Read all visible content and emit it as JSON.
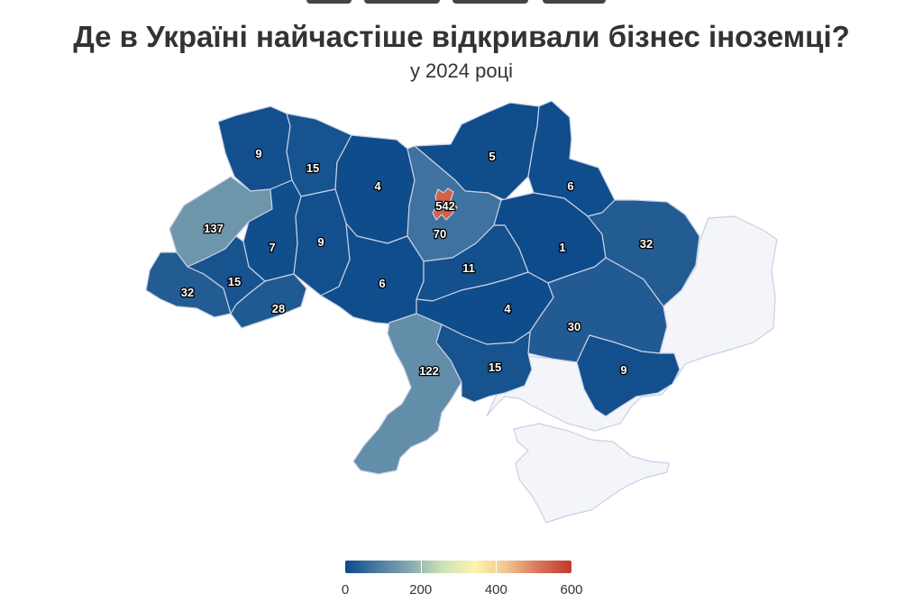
{
  "title": "Де в Україні найчастіше відкривали бізнес іноземці?",
  "subtitle": "у 2024 році",
  "colors": {
    "scale": [
      "#0c4a8a",
      "#4a7ba3",
      "#86a8b0",
      "#c9e3b4",
      "#fff3b0",
      "#f0c48d",
      "#d8745a",
      "#c0392b"
    ],
    "occupied": "#f4f5f8",
    "border": "#c9d0e6",
    "label_fill": "#ffffff",
    "label_stroke": "#000000"
  },
  "legend": {
    "min": 0,
    "max": 600,
    "ticks": [
      "0",
      "200",
      "400",
      "600"
    ]
  },
  "regions": [
    {
      "id": "volyn",
      "value": 9
    },
    {
      "id": "rivne",
      "value": 15
    },
    {
      "id": "zhytomyr",
      "value": 4
    },
    {
      "id": "chernihiv",
      "value": 5
    },
    {
      "id": "sumy",
      "value": 6
    },
    {
      "id": "kyiv-city",
      "value": 542
    },
    {
      "id": "kyiv-oblast",
      "value": 70
    },
    {
      "id": "lviv",
      "value": 137
    },
    {
      "id": "ternopil",
      "value": 7
    },
    {
      "id": "khmelnytskyi",
      "value": 9
    },
    {
      "id": "poltava",
      "value": 1
    },
    {
      "id": "kharkiv",
      "value": 32
    },
    {
      "id": "zakarpattia",
      "value": 32
    },
    {
      "id": "ivano-frankivsk",
      "value": 15
    },
    {
      "id": "chernivtsi",
      "value": 28
    },
    {
      "id": "vinnytsia",
      "value": 6
    },
    {
      "id": "cherkasy",
      "value": 11
    },
    {
      "id": "kirovohrad",
      "value": 4
    },
    {
      "id": "dnipropetrovsk",
      "value": 30
    },
    {
      "id": "odesa",
      "value": 122
    },
    {
      "id": "mykolaiv",
      "value": 15
    },
    {
      "id": "zaporizhzhia",
      "value": 9
    }
  ]
}
